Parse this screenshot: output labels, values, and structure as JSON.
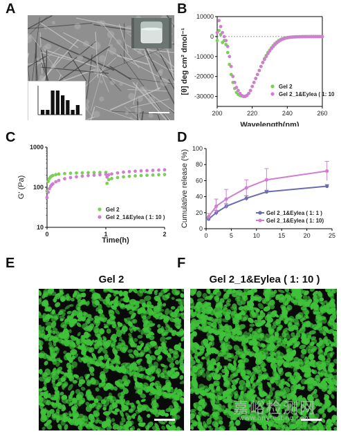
{
  "panels": {
    "A": {
      "letter": "A"
    },
    "B": {
      "letter": "B"
    },
    "C": {
      "letter": "C"
    },
    "D": {
      "letter": "D"
    },
    "E": {
      "letter": "E",
      "title": "Gel 2"
    },
    "F": {
      "letter": "F",
      "title": "Gel 2_1&Eylea ( 1: 10 )"
    }
  },
  "colors": {
    "green": "#7ccf55",
    "pink": "#cf7fcf",
    "purple": "#6b6bb0",
    "cell_green": "#3fc23a"
  },
  "watermark": {
    "main": "嘉峪检测网",
    "sub": "www.anytesting.com"
  },
  "chart_data": [
    {
      "panel": "A-inset",
      "type": "bar",
      "values": [
        1,
        1,
        5,
        5,
        4,
        3,
        1,
        2
      ],
      "ylim": [
        0,
        6
      ],
      "xlabel": "",
      "ylabel": ""
    },
    {
      "panel": "B",
      "type": "scatter",
      "ylabel": "[θ] deg cm² dmol⁻¹",
      "xlabel": "Wavelength(nm)",
      "xlim": [
        200,
        260
      ],
      "ylim": [
        -35000,
        10000
      ],
      "xticks": [
        200,
        220,
        240,
        260
      ],
      "yticks": [
        10000,
        0,
        -10000,
        -20000,
        -30000
      ],
      "ytick_labels": [
        "10000",
        "0",
        "-10000",
        "-20000",
        "-30000"
      ],
      "reference_line": 0,
      "legend_position": "bottom-right",
      "series": [
        {
          "name": "Gel 2",
          "color": "#7ccf55",
          "x": [
            200,
            201,
            202,
            203,
            204,
            205,
            206,
            207,
            208,
            209,
            210,
            211,
            212,
            213,
            214,
            215,
            216,
            217,
            218,
            219,
            220,
            221,
            222,
            223,
            224,
            225,
            226,
            227,
            228,
            229,
            230,
            231,
            232,
            233,
            234,
            235,
            236,
            237,
            238,
            239,
            240,
            241,
            242,
            243,
            244,
            245,
            246,
            247,
            248,
            249,
            250,
            251,
            252,
            253,
            254,
            255,
            256,
            257,
            258,
            259,
            260
          ],
          "y": [
            -2000,
            3000,
            1000,
            -3000,
            -2000,
            -4000,
            -8000,
            -14000,
            -19000,
            -23000,
            -26000,
            -28000,
            -29000,
            -29500,
            -29800,
            -30000,
            -30000,
            -29500,
            -28500,
            -27000,
            -25000,
            -23000,
            -21000,
            -19000,
            -17000,
            -15000,
            -13000,
            -11000,
            -9500,
            -8000,
            -6800,
            -5600,
            -4500,
            -3500,
            -2800,
            -2100,
            -1600,
            -1200,
            -900,
            -700,
            -500,
            -400,
            -300,
            -250,
            -200,
            -150,
            -120,
            -100,
            -80,
            -60,
            -50,
            -40,
            -30,
            -20,
            -15,
            -10,
            -10,
            -5,
            -5,
            0,
            0
          ]
        },
        {
          "name": "Gel 2_1&Eylea ( 1: 10 )",
          "color": "#cf7fcf",
          "x": [
            200,
            201,
            202,
            203,
            204,
            205,
            206,
            207,
            208,
            209,
            210,
            211,
            212,
            213,
            214,
            215,
            216,
            217,
            218,
            219,
            220,
            221,
            222,
            223,
            224,
            225,
            226,
            227,
            228,
            229,
            230,
            231,
            232,
            233,
            234,
            235,
            236,
            237,
            238,
            239,
            240,
            241,
            242,
            243,
            244,
            245,
            246,
            247,
            248,
            249,
            250,
            251,
            252,
            253,
            254,
            255,
            256,
            257,
            258,
            259,
            260
          ],
          "y": [
            2000,
            8000,
            5000,
            2000,
            0,
            -2000,
            -5000,
            -10000,
            -15000,
            -20000,
            -23000,
            -25500,
            -27000,
            -28500,
            -29500,
            -30000,
            -30000,
            -29500,
            -28500,
            -27000,
            -25000,
            -23000,
            -21000,
            -19000,
            -17000,
            -15000,
            -13000,
            -11500,
            -10000,
            -8500,
            -7200,
            -6000,
            -5000,
            -4000,
            -3200,
            -2500,
            -1900,
            -1400,
            -1100,
            -800,
            -600,
            -450,
            -350,
            -250,
            -200,
            -150,
            -120,
            -100,
            -80,
            -60,
            -50,
            -40,
            -30,
            -20,
            -15,
            -10,
            -10,
            -5,
            -5,
            0,
            0
          ]
        }
      ]
    },
    {
      "panel": "C",
      "type": "scatter",
      "ylabel": "G' (Pa)",
      "xlabel": "Time(h)",
      "yscale": "log",
      "xlim": [
        0,
        2
      ],
      "ylim": [
        10,
        1000
      ],
      "xticks": [
        0,
        1,
        2
      ],
      "yticks": [
        10,
        100,
        1000
      ],
      "legend_position": "bottom-right",
      "series": [
        {
          "name": "Gel 2",
          "color": "#7ccf55",
          "x": [
            0,
            0.02,
            0.04,
            0.06,
            0.08,
            0.1,
            0.15,
            0.2,
            0.3,
            0.4,
            0.5,
            0.6,
            0.7,
            0.8,
            0.9,
            1.0,
            1.02,
            1.05,
            1.1,
            1.2,
            1.3,
            1.4,
            1.5,
            1.6,
            1.7,
            1.8,
            1.9,
            2.0
          ],
          "y": [
            80,
            140,
            165,
            180,
            190,
            197,
            207,
            213,
            220,
            224,
            227,
            229,
            231,
            232,
            233,
            235,
            125,
            155,
            165,
            175,
            182,
            187,
            192,
            196,
            199,
            202,
            205,
            208
          ]
        },
        {
          "name": "Gel 2_1&Eylea ( 1: 10 )",
          "color": "#cf7fcf",
          "x": [
            0,
            0.02,
            0.04,
            0.06,
            0.08,
            0.1,
            0.15,
            0.2,
            0.3,
            0.4,
            0.5,
            0.6,
            0.7,
            0.8,
            0.9,
            1.0,
            1.02,
            1.05,
            1.1,
            1.2,
            1.3,
            1.4,
            1.5,
            1.6,
            1.7,
            1.8,
            1.9,
            2.0
          ],
          "y": [
            55,
            75,
            92,
            105,
            115,
            122,
            137,
            148,
            163,
            174,
            182,
            189,
            195,
            200,
            205,
            210,
            180,
            205,
            215,
            228,
            238,
            245,
            251,
            256,
            260,
            264,
            268,
            272
          ]
        }
      ]
    },
    {
      "panel": "D",
      "type": "line",
      "ylabel": "Cumulative release (%)",
      "xlabel": "",
      "xlim": [
        0,
        25
      ],
      "ylim": [
        0,
        100
      ],
      "xticks": [
        0,
        5,
        10,
        15,
        20,
        25
      ],
      "yticks": [
        0,
        20,
        40,
        60,
        80,
        100
      ],
      "legend_position": "bottom-right",
      "series": [
        {
          "name": "Gel 2_1&Eylea ( 1: 1 )",
          "color": "#6b6bb0",
          "x": [
            0.5,
            2,
            4,
            8,
            12,
            24
          ],
          "y": [
            12,
            20,
            28,
            38,
            46,
            53
          ],
          "err": [
            2,
            3,
            3,
            3,
            2,
            2
          ]
        },
        {
          "name": "Gel 2_1&Eylea ( 1: 10)",
          "color": "#cf7fcf",
          "x": [
            0.5,
            2,
            4,
            8,
            12,
            24
          ],
          "y": [
            15,
            28,
            37,
            51,
            61,
            72
          ],
          "err": [
            4,
            9,
            12,
            10,
            14,
            12
          ]
        }
      ]
    }
  ]
}
